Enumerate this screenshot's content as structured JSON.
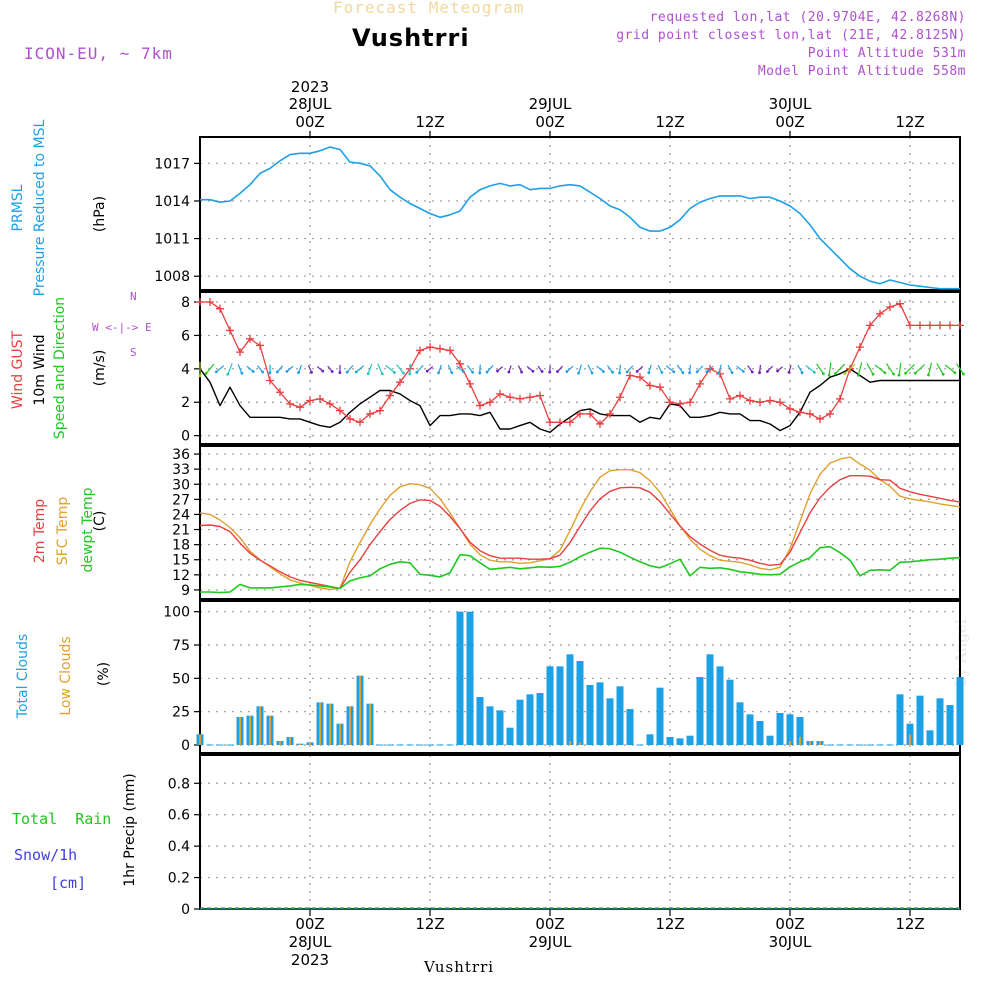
{
  "header": {
    "product_title": "Forecast Meteogram",
    "location": "Vushtrri",
    "model": "ICON-EU, ~ 7km",
    "requested": "requested lon,lat (20.9704E, 42.8268N)",
    "gridpoint": "grid point closest lon,lat (21E, 42.8125N)",
    "point_alt": "Point Altitude 531m",
    "model_alt": "Model Point Altitude 558m",
    "footer_location": "Vushtrri",
    "watermark": "by Angel"
  },
  "colors": {
    "pressure": "#1ea0e6",
    "gust": "#e84040",
    "wind": "#000000",
    "temp2m": "#e84040",
    "sfc": "#e0a030",
    "dewpt": "#20c820",
    "clouds_total": "#1ea0e6",
    "clouds_low": "#e0a030",
    "rain": "#20c820",
    "snow": "#4040e0",
    "labels_purple": "#b050d0"
  },
  "time_axis": {
    "top_ticks": [
      {
        "t": 6,
        "line1": "2023",
        "line2": "28JUL",
        "line3": "00Z"
      },
      {
        "t": 18,
        "line1": "",
        "line2": "",
        "line3": "12Z"
      },
      {
        "t": 30,
        "line1": "",
        "line2": "29JUL",
        "line3": "00Z"
      },
      {
        "t": 42,
        "line1": "",
        "line2": "",
        "line3": "12Z"
      },
      {
        "t": 54,
        "line1": "",
        "line2": "30JUL",
        "line3": "00Z"
      },
      {
        "t": 66,
        "line1": "",
        "line2": "",
        "line3": "12Z"
      }
    ],
    "bottom_ticks": [
      {
        "t": 6,
        "line1": "00Z",
        "line2": "28JUL",
        "line3": "2023"
      },
      {
        "t": 18,
        "line1": "12Z",
        "line2": "",
        "line3": ""
      },
      {
        "t": 30,
        "line1": "00Z",
        "line2": "29JUL",
        "line3": ""
      },
      {
        "t": 42,
        "line1": "12Z",
        "line2": "",
        "line3": ""
      },
      {
        "t": 54,
        "line1": "00Z",
        "line2": "30JUL",
        "line3": ""
      },
      {
        "t": 66,
        "line1": "12Z",
        "line2": "",
        "line3": ""
      }
    ],
    "t_range": [
      -5,
      71
    ]
  },
  "panels": {
    "pressure": {
      "label1": "PRMSL",
      "label2": "Pressure Reduced to MSL",
      "unit": "(hPa)",
      "ticks": [
        1008,
        1011,
        1014,
        1017
      ]
    },
    "wind": {
      "label1": "Wind GUST",
      "label2": "10m Wind",
      "label3": "Speed and Direction",
      "unit": "(m/s)",
      "ticks": [
        0,
        2,
        4,
        6,
        8
      ],
      "compass_n": "N",
      "compass_s": "S",
      "compass_we": "W <-|-> E"
    },
    "temp": {
      "label1": "2m Temp",
      "label2": "SFC Temp",
      "label3": "dewpt Temp",
      "unit": "(C)",
      "ticks": [
        9,
        12,
        15,
        18,
        21,
        24,
        27,
        30,
        33,
        36
      ]
    },
    "clouds": {
      "label1": "Total Clouds",
      "label2": "Low Clouds",
      "unit": "(%)",
      "ticks": [
        0,
        25,
        50,
        75,
        100
      ]
    },
    "precip": {
      "label1": "Total",
      "label1b": "Rain",
      "label2": "Snow/1h",
      "label3": "[cm]",
      "unit": "1hr Precip (mm)",
      "ticks": [
        "0",
        "0.2",
        "0.4",
        "0.6",
        "0.8"
      ]
    }
  },
  "chart_data": [
    {
      "type": "line",
      "title": "PRMSL Pressure Reduced to MSL",
      "ylabel": "hPa",
      "ylim": [
        1006.9,
        1019.1
      ],
      "t": [
        -5,
        -4,
        -3,
        -2,
        -1,
        0,
        1,
        2,
        3,
        4,
        5,
        6,
        7,
        8,
        9,
        10,
        11,
        12,
        13,
        14,
        15,
        16,
        17,
        18,
        19,
        20,
        21,
        22,
        23,
        24,
        25,
        26,
        27,
        28,
        29,
        30,
        31,
        32,
        33,
        34,
        35,
        36,
        37,
        38,
        39,
        40,
        41,
        42,
        43,
        44,
        45,
        46,
        47,
        48,
        49,
        50,
        51,
        52,
        53,
        54,
        55,
        56,
        57,
        58,
        59,
        60,
        61,
        62,
        63,
        64,
        65,
        66,
        67,
        68,
        69,
        70,
        71
      ],
      "values": [
        1014.1,
        1014.1,
        1013.9,
        1014.0,
        1014.6,
        1015.3,
        1016.2,
        1016.6,
        1017.2,
        1017.7,
        1017.8,
        1017.8,
        1018.0,
        1018.3,
        1018.1,
        1017.1,
        1017.0,
        1016.8,
        1016.0,
        1014.9,
        1014.3,
        1013.8,
        1013.4,
        1013.0,
        1012.7,
        1012.9,
        1013.2,
        1014.3,
        1014.9,
        1015.2,
        1015.4,
        1015.2,
        1015.3,
        1014.9,
        1015.0,
        1015.0,
        1015.2,
        1015.3,
        1015.2,
        1014.7,
        1014.2,
        1013.6,
        1013.3,
        1012.7,
        1011.9,
        1011.6,
        1011.6,
        1011.9,
        1012.5,
        1013.4,
        1013.9,
        1014.2,
        1014.4,
        1014.4,
        1014.4,
        1014.2,
        1014.3,
        1014.3,
        1014.0,
        1013.6,
        1013.0,
        1012.1,
        1011.0,
        1010.2,
        1009.4,
        1008.6,
        1008.0,
        1007.6,
        1007.4,
        1007.7,
        1007.5,
        1007.3,
        1007.2,
        1007.1,
        1007.0,
        1007.0,
        1007.0
      ]
    },
    {
      "type": "line",
      "title": "Wind GUST / 10m Wind",
      "ylabel": "m/s",
      "ylim": [
        -0.5,
        8.6
      ],
      "t": [
        -5,
        -4,
        -3,
        -2,
        -1,
        0,
        1,
        2,
        3,
        4,
        5,
        6,
        7,
        8,
        9,
        10,
        11,
        12,
        13,
        14,
        15,
        16,
        17,
        18,
        19,
        20,
        21,
        22,
        23,
        24,
        25,
        26,
        27,
        28,
        29,
        30,
        31,
        32,
        33,
        34,
        35,
        36,
        37,
        38,
        39,
        40,
        41,
        42,
        43,
        44,
        45,
        46,
        47,
        48,
        49,
        50,
        51,
        52,
        53,
        54,
        55,
        56,
        57,
        58,
        59,
        60,
        61,
        62,
        63,
        64,
        65,
        66,
        67,
        68,
        69,
        70,
        71
      ],
      "series": [
        {
          "name": "Wind GUST",
          "values": [
            8.0,
            8.0,
            7.6,
            6.3,
            5.0,
            5.8,
            5.4,
            3.3,
            2.6,
            1.9,
            1.7,
            2.1,
            2.2,
            1.9,
            1.5,
            1.0,
            0.8,
            1.3,
            1.5,
            2.4,
            3.2,
            4.0,
            5.1,
            5.3,
            5.2,
            5.1,
            4.3,
            3.1,
            1.8,
            2.0,
            2.5,
            2.3,
            2.2,
            2.3,
            2.4,
            0.8,
            0.8,
            0.8,
            1.3,
            1.3,
            0.7,
            1.3,
            2.3,
            3.6,
            3.5,
            3.0,
            2.9,
            2.0,
            1.9,
            2.0,
            3.1,
            4.0,
            3.7,
            2.2,
            2.4,
            2.1,
            2.0,
            2.1,
            2.0,
            1.6,
            1.4,
            1.3,
            1.0,
            1.3,
            2.2,
            4.0,
            5.3,
            6.6,
            7.3,
            7.7,
            7.9,
            6.6,
            6.6,
            6.6,
            6.6,
            6.6,
            6.6
          ]
        },
        {
          "name": "10m Wind",
          "values": [
            4.0,
            3.2,
            1.8,
            2.9,
            1.8,
            1.1,
            1.1,
            1.1,
            1.1,
            1.0,
            1.0,
            0.8,
            0.6,
            0.5,
            0.8,
            1.4,
            1.9,
            2.3,
            2.7,
            2.7,
            2.5,
            2.1,
            1.8,
            0.6,
            1.2,
            1.2,
            1.3,
            1.3,
            1.2,
            1.4,
            0.4,
            0.4,
            0.6,
            0.8,
            0.4,
            0.2,
            0.7,
            1.1,
            1.5,
            1.6,
            1.3,
            1.2,
            1.2,
            1.2,
            0.8,
            1.1,
            1.0,
            1.9,
            1.8,
            1.1,
            1.1,
            1.2,
            1.4,
            1.3,
            1.3,
            0.9,
            0.9,
            0.7,
            0.3,
            0.6,
            1.4,
            2.6,
            3.0,
            3.5,
            3.7,
            4.0,
            3.6,
            3.2,
            3.3,
            3.3,
            3.3,
            3.3,
            3.3,
            3.3,
            3.3,
            3.3,
            3.3
          ]
        }
      ]
    },
    {
      "type": "line",
      "title": "2m Temp / SFC Temp / dewpt Temp",
      "ylabel": "C",
      "ylim": [
        7.2,
        37.6
      ],
      "t": [
        -5,
        -4,
        -3,
        -2,
        -1,
        0,
        1,
        2,
        3,
        4,
        5,
        6,
        7,
        8,
        9,
        10,
        11,
        12,
        13,
        14,
        15,
        16,
        17,
        18,
        19,
        20,
        21,
        22,
        23,
        24,
        25,
        26,
        27,
        28,
        29,
        30,
        31,
        32,
        33,
        34,
        35,
        36,
        37,
        38,
        39,
        40,
        41,
        42,
        43,
        44,
        45,
        46,
        47,
        48,
        49,
        50,
        51,
        52,
        53,
        54,
        55,
        56,
        57,
        58,
        59,
        60,
        61,
        62,
        63,
        64,
        65,
        66,
        67,
        68,
        69,
        70,
        71
      ],
      "series": [
        {
          "name": "2m Temp",
          "values": [
            21.8,
            21.9,
            21.6,
            20.6,
            18.3,
            16.3,
            14.9,
            13.8,
            12.6,
            11.6,
            10.9,
            10.5,
            10.1,
            9.7,
            9.3,
            12.5,
            15.0,
            18.0,
            20.6,
            23.0,
            24.8,
            26.2,
            26.9,
            26.8,
            25.6,
            23.6,
            21.2,
            18.5,
            16.8,
            15.8,
            15.3,
            15.3,
            15.3,
            15.1,
            15.1,
            15.2,
            15.9,
            18.4,
            21.6,
            24.7,
            27.1,
            28.6,
            29.3,
            29.4,
            29.3,
            28.4,
            26.6,
            24.1,
            21.7,
            19.6,
            18.1,
            16.9,
            15.9,
            15.5,
            15.3,
            14.9,
            14.3,
            13.9,
            14.1,
            16.5,
            20.4,
            24.3,
            27.3,
            29.4,
            30.9,
            31.7,
            31.7,
            31.6,
            30.9,
            30.8,
            29.2,
            28.5,
            28.0,
            27.6,
            27.2,
            26.8,
            26.5
          ]
        },
        {
          "name": "SFC Temp",
          "values": [
            24.3,
            24.0,
            22.9,
            21.4,
            19.4,
            16.7,
            15.0,
            13.6,
            12.2,
            11.0,
            10.4,
            9.9,
            9.4,
            9.1,
            9.3,
            14.6,
            18.4,
            22.0,
            25.1,
            27.8,
            29.5,
            30.1,
            29.9,
            29.2,
            27.1,
            24.3,
            21.2,
            18.1,
            16.0,
            14.9,
            14.6,
            14.6,
            14.3,
            14.4,
            14.8,
            15.2,
            16.9,
            20.8,
            24.9,
            28.5,
            31.4,
            32.7,
            32.9,
            32.9,
            32.3,
            30.7,
            28.4,
            25.1,
            21.7,
            19.1,
            17.1,
            15.8,
            14.9,
            14.7,
            14.5,
            14.0,
            13.3,
            13.0,
            13.5,
            17.2,
            22.6,
            28.1,
            32.0,
            34.2,
            35.0,
            35.4,
            34.0,
            32.8,
            30.9,
            29.6,
            27.6,
            27.1,
            26.8,
            26.5,
            26.1,
            25.8,
            25.5
          ]
        },
        {
          "name": "dewpt Temp",
          "values": [
            8.6,
            8.6,
            8.5,
            8.6,
            10.1,
            9.4,
            9.4,
            9.4,
            9.6,
            9.8,
            10.1,
            10.0,
            9.8,
            9.6,
            9.3,
            10.8,
            11.4,
            11.8,
            13.2,
            14.1,
            14.6,
            14.4,
            12.1,
            11.9,
            11.6,
            12.4,
            16.0,
            15.8,
            14.4,
            13.1,
            13.3,
            13.5,
            13.2,
            13.4,
            13.6,
            13.5,
            13.7,
            14.5,
            15.6,
            16.5,
            17.3,
            17.2,
            16.5,
            15.5,
            14.6,
            13.8,
            13.4,
            14.2,
            15.1,
            11.8,
            13.5,
            13.3,
            13.4,
            13.1,
            12.6,
            12.4,
            12.1,
            12.0,
            12.1,
            13.6,
            14.6,
            15.4,
            17.4,
            17.6,
            16.4,
            14.9,
            11.8,
            12.9,
            13.0,
            12.9,
            14.5,
            14.6,
            14.8,
            15.0,
            15.1,
            15.3,
            15.4
          ]
        }
      ]
    },
    {
      "type": "bar",
      "title": "Total Clouds / Low Clouds",
      "ylabel": "%",
      "ylim": [
        -6,
        108
      ],
      "t": [
        -5,
        -4,
        -3,
        -2,
        -1,
        0,
        1,
        2,
        3,
        4,
        5,
        6,
        7,
        8,
        9,
        10,
        11,
        12,
        13,
        14,
        15,
        16,
        17,
        18,
        19,
        20,
        21,
        22,
        23,
        24,
        25,
        26,
        27,
        28,
        29,
        30,
        31,
        32,
        33,
        34,
        35,
        36,
        37,
        38,
        39,
        40,
        41,
        42,
        43,
        44,
        45,
        46,
        47,
        48,
        49,
        50,
        51,
        52,
        53,
        54,
        55,
        56,
        57,
        58,
        59,
        60,
        61,
        62,
        63,
        64,
        65,
        66,
        67,
        68,
        69,
        70,
        71
      ],
      "series": [
        {
          "name": "Total Clouds",
          "values": [
            8,
            0,
            0,
            0,
            21,
            22,
            29,
            22,
            3,
            6,
            1,
            2,
            32,
            31,
            16,
            29,
            52,
            31,
            0,
            0,
            0,
            0,
            0,
            0,
            0,
            0,
            100,
            100,
            36,
            29,
            26,
            13,
            34,
            38,
            39,
            59,
            59,
            68,
            63,
            45,
            47,
            35,
            44,
            27,
            0,
            8,
            43,
            6,
            5,
            7,
            51,
            68,
            59,
            49,
            32,
            23,
            18,
            7,
            24,
            23,
            21,
            3,
            3,
            0,
            0,
            0,
            0,
            0,
            0,
            0,
            38,
            16,
            37,
            11,
            35,
            30,
            51
          ]
        },
        {
          "name": "Low Clouds",
          "values": [
            8,
            0,
            0,
            0,
            21,
            22,
            29,
            22,
            3,
            6,
            1,
            2,
            32,
            31,
            16,
            29,
            52,
            31,
            0,
            0,
            0,
            0,
            0,
            0,
            0,
            0,
            0,
            0,
            0,
            0,
            0,
            0,
            0,
            0,
            0,
            0,
            0,
            3,
            2,
            0,
            0,
            0,
            0,
            0,
            0,
            0,
            0,
            0,
            0,
            0,
            0,
            0,
            0,
            0,
            0,
            0,
            0,
            0,
            0,
            3,
            6,
            3,
            3,
            0,
            0,
            0,
            0,
            0,
            0,
            0,
            0,
            8,
            0,
            0,
            0,
            0,
            0
          ]
        }
      ]
    },
    {
      "type": "bar",
      "title": "1hr Precip",
      "ylabel": "mm",
      "ylim": [
        0,
        0.98
      ],
      "t": [
        -5,
        71
      ],
      "series": [
        {
          "name": "Total Rain",
          "values": [
            0,
            0
          ]
        },
        {
          "name": "Snow/1h",
          "values": [
            0,
            0
          ]
        }
      ]
    }
  ]
}
